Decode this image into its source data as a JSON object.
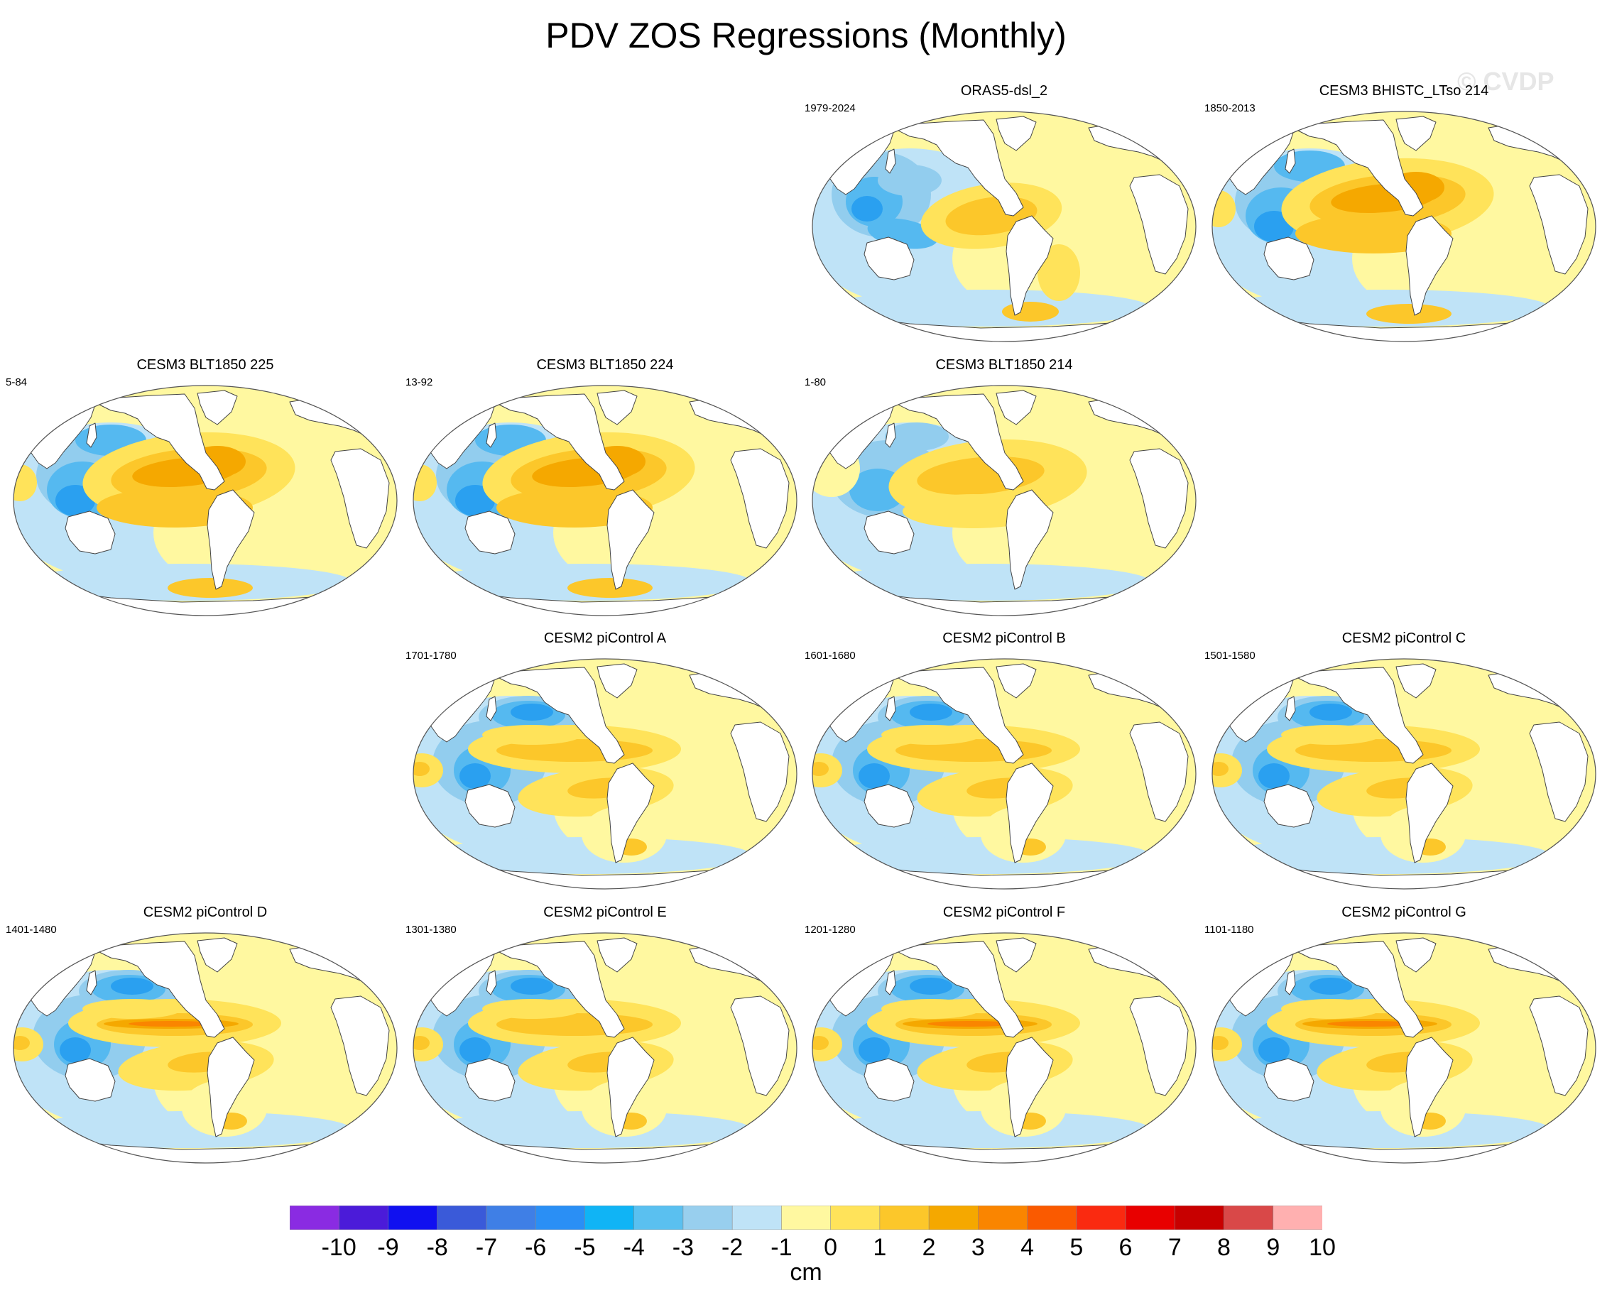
{
  "title": "PDV ZOS Regressions (Monthly)",
  "watermark": "© CVDP",
  "panels": [
    {
      "title": "ORAS5-dsl_2",
      "years": "1979-2024",
      "style": "obs"
    },
    {
      "title": "CESM3 BHISTC_LTso 214",
      "years": "1850-2013",
      "style": "cesm3"
    },
    {
      "title": "CESM3 BLT1850 225",
      "years": "5-84",
      "style": "cesm3"
    },
    {
      "title": "CESM3 BLT1850 224",
      "years": "13-92",
      "style": "cesm3"
    },
    {
      "title": "CESM3 BLT1850 214",
      "years": "1-80",
      "style": "cesm3weak"
    },
    {
      "title": "CESM2 piControl A",
      "years": "1701-1780",
      "style": "cesm2"
    },
    {
      "title": "CESM2 piControl B",
      "years": "1601-1680",
      "style": "cesm2"
    },
    {
      "title": "CESM2 piControl C",
      "years": "1501-1580",
      "style": "cesm2"
    },
    {
      "title": "CESM2 piControl D",
      "years": "1401-1480",
      "style": "cesm2strong"
    },
    {
      "title": "CESM2 piControl E",
      "years": "1301-1380",
      "style": "cesm2"
    },
    {
      "title": "CESM2 piControl F",
      "years": "1201-1280",
      "style": "cesm2strong"
    },
    {
      "title": "CESM2 piControl G",
      "years": "1101-1180",
      "style": "cesm2strong"
    }
  ],
  "colorbar": {
    "units": "cm",
    "labels": [
      "-10",
      "-9",
      "-8",
      "-7",
      "-6",
      "-5",
      "-4",
      "-3",
      "-2",
      "-1",
      "0",
      "1",
      "2",
      "3",
      "4",
      "5",
      "6",
      "7",
      "8",
      "9",
      "10"
    ],
    "colors": [
      "#8a2be2",
      "#4b1bd9",
      "#1010f0",
      "#3a5ad9",
      "#3f7fe6",
      "#2a8ff5",
      "#10b4f5",
      "#5ac0f0",
      "#98cfee",
      "#bfe3f7",
      "#fff8a0",
      "#ffe35a",
      "#fcc72a",
      "#f5a800",
      "#fa8500",
      "#fa5a00",
      "#fa2a10",
      "#e80000",
      "#c80000",
      "#d94848",
      "#ffb0b0"
    ]
  }
}
